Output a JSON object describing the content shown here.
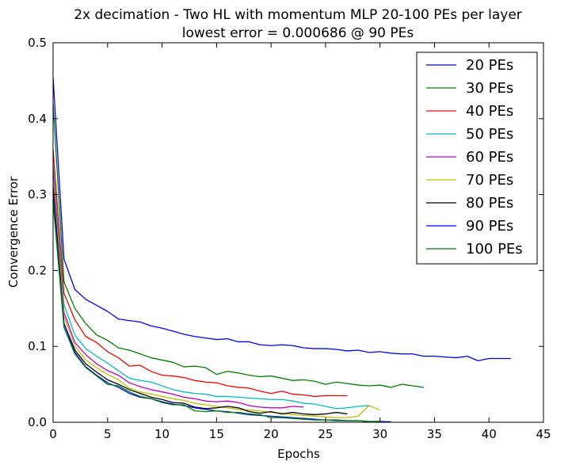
{
  "chart_data": {
    "type": "line",
    "title": "2x decimation - Two HL with momentum MLP 20-100 PEs per layer",
    "subtitle": "lowest error = 0.000686 @ 90 PEs",
    "xlabel": "Epochs",
    "ylabel": "Convergence Error",
    "xlim": [
      0,
      45
    ],
    "ylim": [
      0,
      0.5
    ],
    "xticks": [
      0,
      5,
      10,
      15,
      20,
      25,
      30,
      35,
      40,
      45
    ],
    "yticks": [
      0.0,
      0.1,
      0.2,
      0.3,
      0.4,
      0.5
    ],
    "xtick_labels": [
      "0",
      "5",
      "10",
      "15",
      "20",
      "25",
      "30",
      "35",
      "40",
      "45"
    ],
    "ytick_labels": [
      "0.0",
      "0.1",
      "0.2",
      "0.3",
      "0.4",
      "0.5"
    ],
    "grid": false,
    "legend_position": "top-right",
    "series": [
      {
        "name": "20 PEs",
        "color": "#0000ff",
        "x": [
          0,
          1,
          2,
          3,
          4,
          5,
          6,
          7,
          8,
          9,
          10,
          11,
          12,
          13,
          14,
          15,
          16,
          17,
          18,
          19,
          20,
          21,
          22,
          23,
          24,
          25,
          26,
          27,
          28,
          29,
          30,
          31,
          32,
          33,
          34,
          35,
          36,
          37,
          38,
          39,
          40,
          41,
          42
        ],
        "y": [
          0.455,
          0.215,
          0.175,
          0.162,
          0.154,
          0.146,
          0.136,
          0.134,
          0.132,
          0.127,
          0.124,
          0.12,
          0.116,
          0.113,
          0.111,
          0.109,
          0.11,
          0.106,
          0.106,
          0.102,
          0.101,
          0.102,
          0.101,
          0.098,
          0.097,
          0.097,
          0.096,
          0.094,
          0.095,
          0.092,
          0.093,
          0.091,
          0.09,
          0.09,
          0.087,
          0.087,
          0.086,
          0.085,
          0.087,
          0.081,
          0.084,
          0.084,
          0.084
        ]
      },
      {
        "name": "30 PEs",
        "color": "#008000",
        "x": [
          0,
          1,
          2,
          3,
          4,
          5,
          6,
          7,
          8,
          9,
          10,
          11,
          12,
          13,
          14,
          15,
          16,
          17,
          18,
          19,
          20,
          21,
          22,
          23,
          24,
          25,
          26,
          27,
          28,
          29,
          30,
          31,
          32,
          33,
          34
        ],
        "y": [
          0.42,
          0.185,
          0.15,
          0.13,
          0.115,
          0.108,
          0.098,
          0.095,
          0.09,
          0.085,
          0.082,
          0.079,
          0.073,
          0.074,
          0.072,
          0.063,
          0.067,
          0.065,
          0.062,
          0.06,
          0.061,
          0.058,
          0.055,
          0.056,
          0.054,
          0.05,
          0.053,
          0.051,
          0.049,
          0.048,
          0.049,
          0.046,
          0.05,
          0.048,
          0.046
        ]
      },
      {
        "name": "40 PEs",
        "color": "#ff0000",
        "x": [
          0,
          1,
          2,
          3,
          4,
          5,
          6,
          7,
          8,
          9,
          10,
          11,
          12,
          13,
          14,
          15,
          16,
          17,
          18,
          19,
          20,
          21,
          22,
          23,
          24,
          25,
          26,
          27
        ],
        "y": [
          0.36,
          0.17,
          0.135,
          0.113,
          0.105,
          0.093,
          0.085,
          0.074,
          0.075,
          0.067,
          0.062,
          0.061,
          0.059,
          0.055,
          0.053,
          0.052,
          0.048,
          0.046,
          0.045,
          0.041,
          0.038,
          0.041,
          0.037,
          0.036,
          0.034,
          0.035,
          0.035,
          0.035
        ]
      },
      {
        "name": "50 PEs",
        "color": "#00bfbf",
        "x": [
          0,
          1,
          2,
          3,
          4,
          5,
          6,
          7,
          8,
          9,
          10,
          11,
          12,
          13,
          14,
          15,
          16,
          17,
          18,
          19,
          20,
          21,
          22,
          23,
          24,
          25,
          26,
          27,
          28,
          29
        ],
        "y": [
          0.34,
          0.155,
          0.115,
          0.097,
          0.087,
          0.078,
          0.068,
          0.058,
          0.055,
          0.053,
          0.048,
          0.043,
          0.04,
          0.038,
          0.037,
          0.034,
          0.034,
          0.033,
          0.032,
          0.031,
          0.03,
          0.03,
          0.028,
          0.025,
          0.024,
          0.021,
          0.018,
          0.019,
          0.021,
          0.022
        ]
      },
      {
        "name": "60 PEs",
        "color": "#bf00bf",
        "x": [
          0,
          1,
          2,
          3,
          4,
          5,
          6,
          7,
          8,
          9,
          10,
          11,
          12,
          13,
          14,
          15,
          16,
          17,
          18,
          19,
          20,
          21,
          22,
          23
        ],
        "y": [
          0.33,
          0.145,
          0.105,
          0.089,
          0.077,
          0.068,
          0.062,
          0.052,
          0.047,
          0.043,
          0.04,
          0.037,
          0.033,
          0.031,
          0.028,
          0.027,
          0.028,
          0.026,
          0.022,
          0.02,
          0.019,
          0.019,
          0.021,
          0.02
        ]
      },
      {
        "name": "70 PEs",
        "color": "#bfbf00",
        "x": [
          0,
          1,
          2,
          3,
          4,
          5,
          6,
          7,
          8,
          9,
          10,
          11,
          12,
          13,
          14,
          15,
          16,
          17,
          18,
          19,
          20,
          21,
          22,
          23,
          24,
          25,
          26,
          27,
          28,
          29,
          30
        ],
        "y": [
          0.32,
          0.14,
          0.1,
          0.082,
          0.072,
          0.063,
          0.056,
          0.045,
          0.04,
          0.037,
          0.034,
          0.031,
          0.029,
          0.025,
          0.023,
          0.021,
          0.019,
          0.017,
          0.016,
          0.015,
          0.013,
          0.012,
          0.01,
          0.009,
          0.008,
          0.007,
          0.006,
          0.006,
          0.008,
          0.022,
          0.016
        ]
      },
      {
        "name": "80 PEs",
        "color": "#000000",
        "x": [
          0,
          1,
          2,
          3,
          4,
          5,
          6,
          7,
          8,
          9,
          10,
          11,
          12,
          13,
          14,
          15,
          16,
          17,
          18,
          19,
          20,
          21,
          22,
          23,
          24,
          25,
          26,
          27
        ],
        "y": [
          0.31,
          0.13,
          0.095,
          0.077,
          0.066,
          0.056,
          0.05,
          0.043,
          0.038,
          0.033,
          0.03,
          0.026,
          0.025,
          0.02,
          0.018,
          0.019,
          0.021,
          0.019,
          0.014,
          0.012,
          0.014,
          0.011,
          0.013,
          0.011,
          0.01,
          0.011,
          0.013,
          0.011
        ]
      },
      {
        "name": "90 PEs",
        "color": "#0000ff",
        "x": [
          0,
          1,
          2,
          3,
          4,
          5,
          6,
          7,
          8,
          9,
          10,
          11,
          12,
          13,
          14,
          15,
          16,
          17,
          18,
          19,
          20,
          21,
          22,
          23,
          24,
          25,
          26,
          27,
          28,
          29,
          30,
          31
        ],
        "y": [
          0.3,
          0.13,
          0.092,
          0.073,
          0.062,
          0.052,
          0.046,
          0.038,
          0.033,
          0.031,
          0.027,
          0.024,
          0.022,
          0.019,
          0.017,
          0.015,
          0.014,
          0.012,
          0.01,
          0.009,
          0.008,
          0.007,
          0.006,
          0.005,
          0.004,
          0.003,
          0.003,
          0.002,
          0.002,
          0.001,
          0.001,
          0.000686
        ]
      },
      {
        "name": "100 PEs",
        "color": "#008000",
        "x": [
          0,
          1,
          2,
          3,
          4,
          5,
          6,
          7,
          8,
          9,
          10,
          11,
          12,
          13,
          14,
          15,
          16,
          17,
          18,
          19,
          20,
          21,
          22,
          23,
          24,
          25,
          26,
          27,
          28,
          29,
          30
        ],
        "y": [
          0.29,
          0.125,
          0.09,
          0.072,
          0.061,
          0.05,
          0.048,
          0.04,
          0.034,
          0.031,
          0.026,
          0.023,
          0.023,
          0.015,
          0.014,
          0.015,
          0.013,
          0.013,
          0.011,
          0.01,
          0.006,
          0.006,
          0.005,
          0.004,
          0.003,
          0.003,
          0.002,
          0.002,
          0.002,
          0.001,
          0.001
        ]
      }
    ]
  }
}
